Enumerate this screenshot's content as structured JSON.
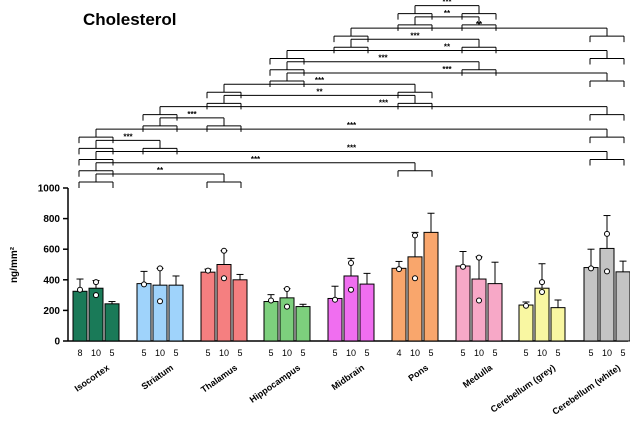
{
  "chart_data": {
    "type": "bar",
    "title": "Cholesterol",
    "ylabel": "ng/mm²",
    "ylim": [
      0,
      1000
    ],
    "yticks": [
      0,
      200,
      400,
      600,
      800,
      1000
    ],
    "categories": [
      "Isocortex",
      "Striatum",
      "Thalamus",
      "Hippocampus",
      "Midbrain",
      "Pons",
      "Medulla",
      "Cerebellum (grey)",
      "Cerebellum (white)"
    ],
    "colors": [
      "#1a7a58",
      "#9fd3fb",
      "#f57f80",
      "#7dd07d",
      "#f06ef0",
      "#f9a66c",
      "#f7a8c7",
      "#f9f7a2",
      "#c4c4c4"
    ],
    "groups": [
      {
        "category": "Isocortex",
        "bars": [
          {
            "n": "8",
            "mean": 325,
            "err": 80,
            "points": [
              335
            ]
          },
          {
            "n": "10",
            "mean": 345,
            "err": 50,
            "points": [
              385,
              300
            ]
          },
          {
            "n": "5",
            "mean": 243,
            "err": 15,
            "points": []
          }
        ]
      },
      {
        "category": "Striatum",
        "bars": [
          {
            "n": "5",
            "mean": 375,
            "err": 80,
            "points": [
              370
            ]
          },
          {
            "n": "10",
            "mean": 365,
            "err": 110,
            "points": [
              475,
              260
            ]
          },
          {
            "n": "5",
            "mean": 365,
            "err": 60,
            "points": []
          }
        ]
      },
      {
        "category": "Thalamus",
        "bars": [
          {
            "n": "5",
            "mean": 450,
            "err": 20,
            "points": [
              460
            ]
          },
          {
            "n": "10",
            "mean": 500,
            "err": 90,
            "points": [
              590,
              410
            ]
          },
          {
            "n": "5",
            "mean": 400,
            "err": 35,
            "points": []
          }
        ]
      },
      {
        "category": "Hippocampus",
        "bars": [
          {
            "n": "5",
            "mean": 258,
            "err": 45,
            "points": [
              265
            ]
          },
          {
            "n": "10",
            "mean": 282,
            "err": 60,
            "points": [
              340,
              225
            ]
          },
          {
            "n": "5",
            "mean": 225,
            "err": 15,
            "points": []
          }
        ]
      },
      {
        "category": "Midbrain",
        "bars": [
          {
            "n": "5",
            "mean": 278,
            "err": 80,
            "points": [
              270
            ]
          },
          {
            "n": "10",
            "mean": 425,
            "err": 115,
            "points": [
              510,
              335
            ]
          },
          {
            "n": "5",
            "mean": 372,
            "err": 70,
            "points": []
          }
        ]
      },
      {
        "category": "Pons",
        "bars": [
          {
            "n": "4",
            "mean": 475,
            "err": 45,
            "points": [
              470
            ]
          },
          {
            "n": "10",
            "mean": 550,
            "err": 160,
            "points": [
              690,
              410
            ]
          },
          {
            "n": "5",
            "mean": 710,
            "err": 125,
            "points": []
          }
        ]
      },
      {
        "category": "Medulla",
        "bars": [
          {
            "n": "5",
            "mean": 490,
            "err": 95,
            "points": [
              485
            ]
          },
          {
            "n": "10",
            "mean": 405,
            "err": 145,
            "points": [
              545,
              265
            ]
          },
          {
            "n": "5",
            "mean": 375,
            "err": 140,
            "points": []
          }
        ]
      },
      {
        "category": "Cerebellum (grey)",
        "bars": [
          {
            "n": "5",
            "mean": 235,
            "err": 20,
            "points": [
              230
            ]
          },
          {
            "n": "10",
            "mean": 345,
            "err": 160,
            "points": [
              385,
              320
            ]
          },
          {
            "n": "5",
            "mean": 218,
            "err": 50,
            "points": []
          }
        ]
      },
      {
        "category": "Cerebellum (white)",
        "bars": [
          {
            "n": "5",
            "mean": 480,
            "err": 120,
            "points": [
              475
            ]
          },
          {
            "n": "10",
            "mean": 605,
            "err": 215,
            "points": [
              700,
              455
            ]
          },
          {
            "n": "5",
            "mean": 452,
            "err": 70,
            "points": []
          }
        ]
      }
    ],
    "significance": [
      {
        "from": 0,
        "to": 2,
        "label": "**"
      },
      {
        "from": 0,
        "to": 5,
        "label": "***"
      },
      {
        "from": 0,
        "to": 8,
        "label": "***"
      },
      {
        "from": 0,
        "to": 1,
        "label": "***"
      },
      {
        "from": 0,
        "to": 8,
        "label": "***"
      },
      {
        "from": 1,
        "to": 2,
        "label": "***"
      },
      {
        "from": 1,
        "to": 8,
        "label": "***"
      },
      {
        "from": 2,
        "to": 5,
        "label": "**"
      },
      {
        "from": 2,
        "to": 5,
        "label": "***"
      },
      {
        "from": 3,
        "to": 8,
        "label": "***"
      },
      {
        "from": 3,
        "to": 6,
        "label": "***"
      },
      {
        "from": 3,
        "to": 8,
        "label": "**"
      },
      {
        "from": 4,
        "to": 6,
        "label": "***"
      },
      {
        "from": 4,
        "to": 8,
        "label": "**"
      },
      {
        "from": 5,
        "to": 6,
        "label": "**"
      },
      {
        "from": 5,
        "to": 6,
        "label": "***"
      }
    ]
  }
}
